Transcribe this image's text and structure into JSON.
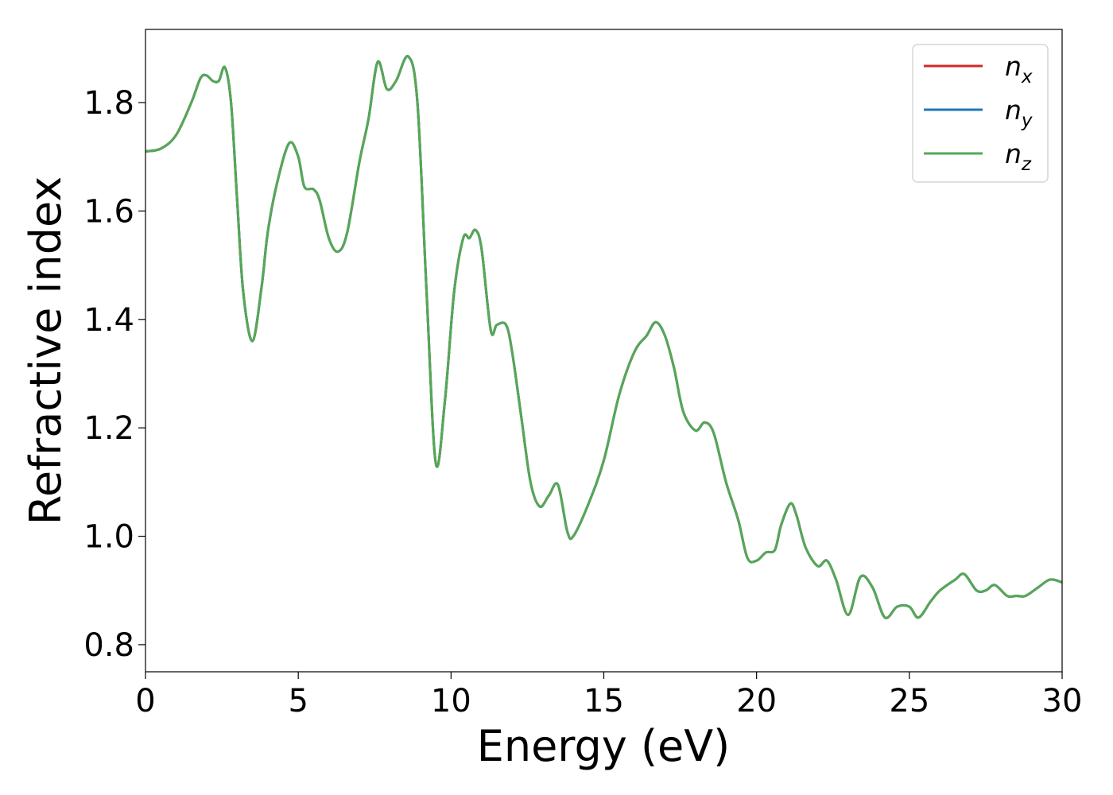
{
  "chart_data": {
    "type": "line",
    "title": "",
    "xlabel": "Energy (eV)",
    "ylabel": "Refractive index",
    "xlim": [
      0,
      30
    ],
    "ylim": [
      0.75,
      1.935
    ],
    "xticks": [
      0,
      5,
      10,
      15,
      20,
      25,
      30
    ],
    "xtick_labels": [
      "0",
      "5",
      "10",
      "15",
      "20",
      "25",
      "30"
    ],
    "yticks": [
      0.8,
      1.0,
      1.2,
      1.4,
      1.6,
      1.8
    ],
    "ytick_labels": [
      "0.8",
      "1.0",
      "1.2",
      "1.4",
      "1.6",
      "1.8"
    ],
    "grid": false,
    "legend_position": "top-right",
    "colors": {
      "n_x": "#d62728",
      "n_y": "#1f77b4",
      "n_z": "#55a855"
    },
    "legend": [
      {
        "base": "n",
        "sub": "x",
        "color_key": "n_x"
      },
      {
        "base": "n",
        "sub": "y",
        "color_key": "n_y"
      },
      {
        "base": "n",
        "sub": "z",
        "color_key": "n_z"
      }
    ],
    "x": [
      0,
      0.5,
      1.0,
      1.5,
      1.8,
      2.0,
      2.2,
      2.4,
      2.6,
      2.8,
      3.0,
      3.2,
      3.5,
      3.8,
      4.0,
      4.3,
      4.7,
      5.0,
      5.2,
      5.5,
      5.7,
      6.0,
      6.3,
      6.6,
      7.0,
      7.3,
      7.6,
      7.9,
      8.2,
      8.6,
      8.9,
      9.2,
      9.5,
      9.8,
      10.1,
      10.4,
      10.6,
      10.8,
      11.0,
      11.3,
      11.5,
      11.8,
      12.0,
      12.3,
      12.6,
      12.9,
      13.2,
      13.5,
      13.8,
      14.0,
      14.5,
      15.0,
      15.5,
      16.0,
      16.4,
      16.7,
      17.0,
      17.3,
      17.6,
      18.0,
      18.3,
      18.6,
      19.0,
      19.4,
      19.7,
      20.0,
      20.3,
      20.6,
      20.8,
      21.1,
      21.3,
      21.6,
      22.0,
      22.3,
      22.6,
      23.0,
      23.4,
      23.8,
      24.2,
      24.6,
      25.0,
      25.3,
      25.7,
      26.0,
      26.5,
      26.8,
      27.2,
      27.5,
      27.8,
      28.2,
      28.5,
      28.8,
      29.2,
      29.6,
      30.0
    ],
    "series": [
      {
        "name": "n_x",
        "color_key": "n_x",
        "values": [
          1.71,
          1.715,
          1.74,
          1.8,
          1.845,
          1.85,
          1.84,
          1.84,
          1.865,
          1.8,
          1.62,
          1.45,
          1.36,
          1.46,
          1.56,
          1.65,
          1.725,
          1.7,
          1.645,
          1.64,
          1.62,
          1.55,
          1.525,
          1.56,
          1.69,
          1.77,
          1.875,
          1.825,
          1.84,
          1.885,
          1.8,
          1.45,
          1.135,
          1.25,
          1.45,
          1.55,
          1.55,
          1.565,
          1.53,
          1.38,
          1.39,
          1.39,
          1.34,
          1.22,
          1.1,
          1.055,
          1.075,
          1.095,
          1.01,
          1.0,
          1.06,
          1.14,
          1.26,
          1.34,
          1.37,
          1.395,
          1.37,
          1.31,
          1.23,
          1.195,
          1.21,
          1.19,
          1.1,
          1.03,
          0.96,
          0.955,
          0.97,
          0.975,
          1.02,
          1.06,
          1.04,
          0.98,
          0.945,
          0.955,
          0.92,
          0.855,
          0.925,
          0.905,
          0.85,
          0.87,
          0.87,
          0.85,
          0.88,
          0.9,
          0.92,
          0.93,
          0.9,
          0.9,
          0.91,
          0.89,
          0.89,
          0.89,
          0.905,
          0.92,
          0.915
        ]
      },
      {
        "name": "n_y",
        "color_key": "n_y",
        "values": [
          1.71,
          1.715,
          1.74,
          1.8,
          1.845,
          1.85,
          1.84,
          1.84,
          1.865,
          1.8,
          1.62,
          1.45,
          1.36,
          1.46,
          1.56,
          1.65,
          1.725,
          1.7,
          1.645,
          1.64,
          1.62,
          1.55,
          1.525,
          1.56,
          1.69,
          1.77,
          1.875,
          1.825,
          1.84,
          1.885,
          1.8,
          1.45,
          1.135,
          1.25,
          1.45,
          1.55,
          1.55,
          1.565,
          1.53,
          1.38,
          1.39,
          1.39,
          1.34,
          1.22,
          1.1,
          1.055,
          1.075,
          1.095,
          1.01,
          1.0,
          1.06,
          1.14,
          1.26,
          1.34,
          1.37,
          1.395,
          1.37,
          1.31,
          1.23,
          1.195,
          1.21,
          1.19,
          1.1,
          1.03,
          0.96,
          0.955,
          0.97,
          0.975,
          1.02,
          1.06,
          1.04,
          0.98,
          0.945,
          0.955,
          0.92,
          0.855,
          0.925,
          0.905,
          0.85,
          0.87,
          0.87,
          0.85,
          0.88,
          0.9,
          0.92,
          0.93,
          0.9,
          0.9,
          0.91,
          0.89,
          0.89,
          0.89,
          0.905,
          0.92,
          0.915
        ]
      },
      {
        "name": "n_z",
        "color_key": "n_z",
        "values": [
          1.71,
          1.715,
          1.74,
          1.8,
          1.845,
          1.85,
          1.84,
          1.84,
          1.865,
          1.8,
          1.62,
          1.45,
          1.36,
          1.46,
          1.56,
          1.65,
          1.725,
          1.7,
          1.645,
          1.64,
          1.62,
          1.55,
          1.525,
          1.56,
          1.69,
          1.77,
          1.875,
          1.825,
          1.84,
          1.885,
          1.8,
          1.45,
          1.135,
          1.25,
          1.45,
          1.55,
          1.55,
          1.565,
          1.53,
          1.38,
          1.39,
          1.39,
          1.34,
          1.22,
          1.1,
          1.055,
          1.075,
          1.095,
          1.01,
          1.0,
          1.06,
          1.14,
          1.26,
          1.34,
          1.37,
          1.395,
          1.37,
          1.31,
          1.23,
          1.195,
          1.21,
          1.19,
          1.1,
          1.03,
          0.96,
          0.955,
          0.97,
          0.975,
          1.02,
          1.06,
          1.04,
          0.98,
          0.945,
          0.955,
          0.92,
          0.855,
          0.925,
          0.905,
          0.85,
          0.87,
          0.87,
          0.85,
          0.88,
          0.9,
          0.92,
          0.93,
          0.9,
          0.9,
          0.91,
          0.89,
          0.89,
          0.89,
          0.905,
          0.92,
          0.915
        ]
      }
    ]
  }
}
